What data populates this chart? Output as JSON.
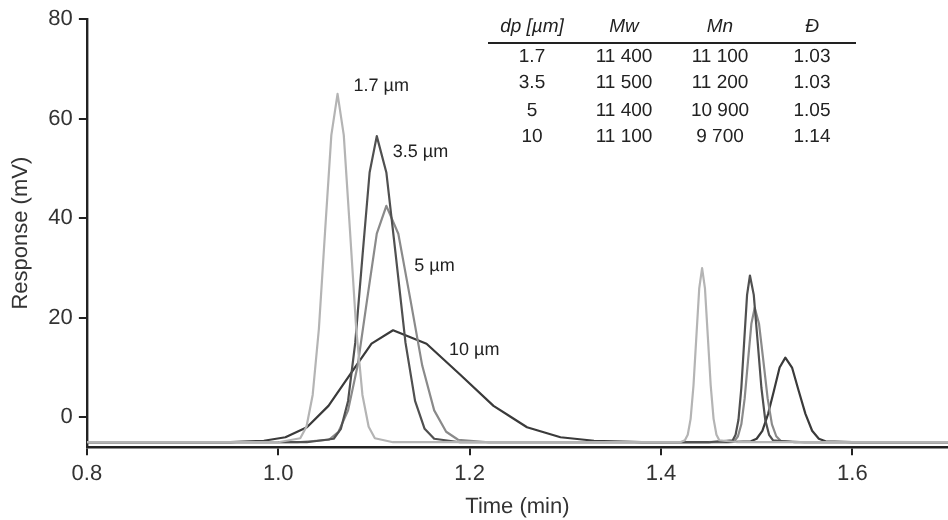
{
  "chart_data": {
    "type": "line",
    "xlabel": "Time (min)",
    "ylabel": "Response (mV)",
    "xlim": [
      0.8,
      1.7
    ],
    "xticks": [
      {
        "value": 0.8,
        "label": "0.8"
      },
      {
        "value": 1.0,
        "label": "1.0"
      },
      {
        "value": 1.2,
        "label": "1.2"
      },
      {
        "value": 1.4,
        "label": "1.4"
      },
      {
        "value": 1.6,
        "label": "1.6"
      }
    ],
    "ylim": [
      -6,
      80
    ],
    "yticks": [
      0,
      20,
      40,
      60,
      80
    ],
    "grid": false,
    "legend": false,
    "annotations": [
      "dp [µm]",
      "Mw",
      "Mn",
      "Đ",
      "1.7",
      "11 400",
      "11 100",
      "1.03",
      "3.5",
      "11 500",
      "11 200",
      "1.03",
      "5",
      "11 400",
      "10 900",
      "1.05",
      "10",
      "11 100",
      "9 700",
      "1.14"
    ],
    "series": [
      {
        "name": "1.7 µm",
        "color": "#b4b4b4",
        "x": [
          0.8,
          1.0,
          1.023,
          1.0295,
          1.036,
          1.0425,
          1.049,
          1.0555,
          1.062,
          1.0685,
          1.075,
          1.0815,
          1.088,
          1.0945,
          1.101,
          1.12,
          1.42,
          1.425,
          1.428,
          1.431,
          1.434,
          1.437,
          1.44,
          1.443,
          1.446,
          1.449,
          1.452,
          1.455,
          1.458,
          1.461,
          1.48,
          1.7
        ],
        "values": [
          -5,
          -5,
          -4.2,
          -1.9,
          4.5,
          17.8,
          37.5,
          56.7,
          65,
          56.7,
          37.5,
          17.8,
          4.5,
          -1.9,
          -4.2,
          -5,
          -5,
          -4.6,
          -3.5,
          -0.3,
          6.4,
          16.2,
          25.9,
          30,
          25.9,
          16.2,
          6.4,
          -0.3,
          -3.5,
          -4.6,
          -5,
          -5
        ]
      },
      {
        "name": "3.5 µm",
        "color": "#505050",
        "x": [
          0.8,
          1.03,
          1.058,
          1.0655,
          1.073,
          1.0805,
          1.088,
          1.0955,
          1.103,
          1.113,
          1.123,
          1.133,
          1.143,
          1.153,
          1.163,
          1.19,
          1.45,
          1.475,
          1.478,
          1.481,
          1.484,
          1.487,
          1.49,
          1.493,
          1.497,
          1.501,
          1.505,
          1.509,
          1.513,
          1.517,
          1.54,
          1.7
        ],
        "values": [
          -5,
          -5,
          -4.3,
          -2.3,
          3.3,
          15,
          32.3,
          49.2,
          56.5,
          49.2,
          32.3,
          15,
          3.3,
          -2.3,
          -4.3,
          -5,
          -5,
          -4.6,
          -3.5,
          -0.5,
          5.9,
          15.3,
          24.6,
          28.5,
          24.6,
          15.3,
          5.9,
          -0.5,
          -3.5,
          -4.6,
          -5,
          -5
        ]
      },
      {
        "name": "5 µm",
        "color": "#8a8a8a",
        "x": [
          0.8,
          1.02,
          1.053,
          1.063,
          1.073,
          1.083,
          1.093,
          1.103,
          1.113,
          1.1255,
          1.138,
          1.1505,
          1.163,
          1.1755,
          1.188,
          1.22,
          1.45,
          1.477,
          1.4805,
          1.484,
          1.4875,
          1.491,
          1.4945,
          1.498,
          1.5025,
          1.507,
          1.5115,
          1.516,
          1.5205,
          1.525,
          1.55,
          1.7
        ],
        "values": [
          -5,
          -5,
          -4.5,
          -2.9,
          1.4,
          10.4,
          23.8,
          36.9,
          42.5,
          36.9,
          23.8,
          10.4,
          1.4,
          -2.9,
          -4.5,
          -5,
          -5,
          -4.7,
          -3.8,
          -1.4,
          3.8,
          11.4,
          18.8,
          22,
          18.8,
          11.4,
          3.8,
          -1.4,
          -3.8,
          -4.7,
          -5,
          -5
        ]
      },
      {
        "name": "10 µm",
        "color": "#3a3a3a",
        "x": [
          0.8,
          0.95,
          0.985,
          1.0075,
          1.03,
          1.0525,
          1.075,
          1.0975,
          1.12,
          1.155,
          1.19,
          1.225,
          1.26,
          1.295,
          1.33,
          1.38,
          1.47,
          1.494,
          1.5,
          1.506,
          1.512,
          1.518,
          1.524,
          1.53,
          1.537,
          1.544,
          1.551,
          1.558,
          1.565,
          1.572,
          1.6,
          1.7
        ],
        "values": [
          -5,
          -5,
          -4.7,
          -4,
          -2,
          2.3,
          8.6,
          14.8,
          17.5,
          14.8,
          8.6,
          2.3,
          -2,
          -4,
          -4.7,
          -5,
          -5,
          -4.8,
          -4.3,
          -2.7,
          0.7,
          5.3,
          10,
          12,
          10,
          5.3,
          0.7,
          -2.7,
          -4.3,
          -4.8,
          -5,
          -5
        ]
      }
    ]
  }
}
